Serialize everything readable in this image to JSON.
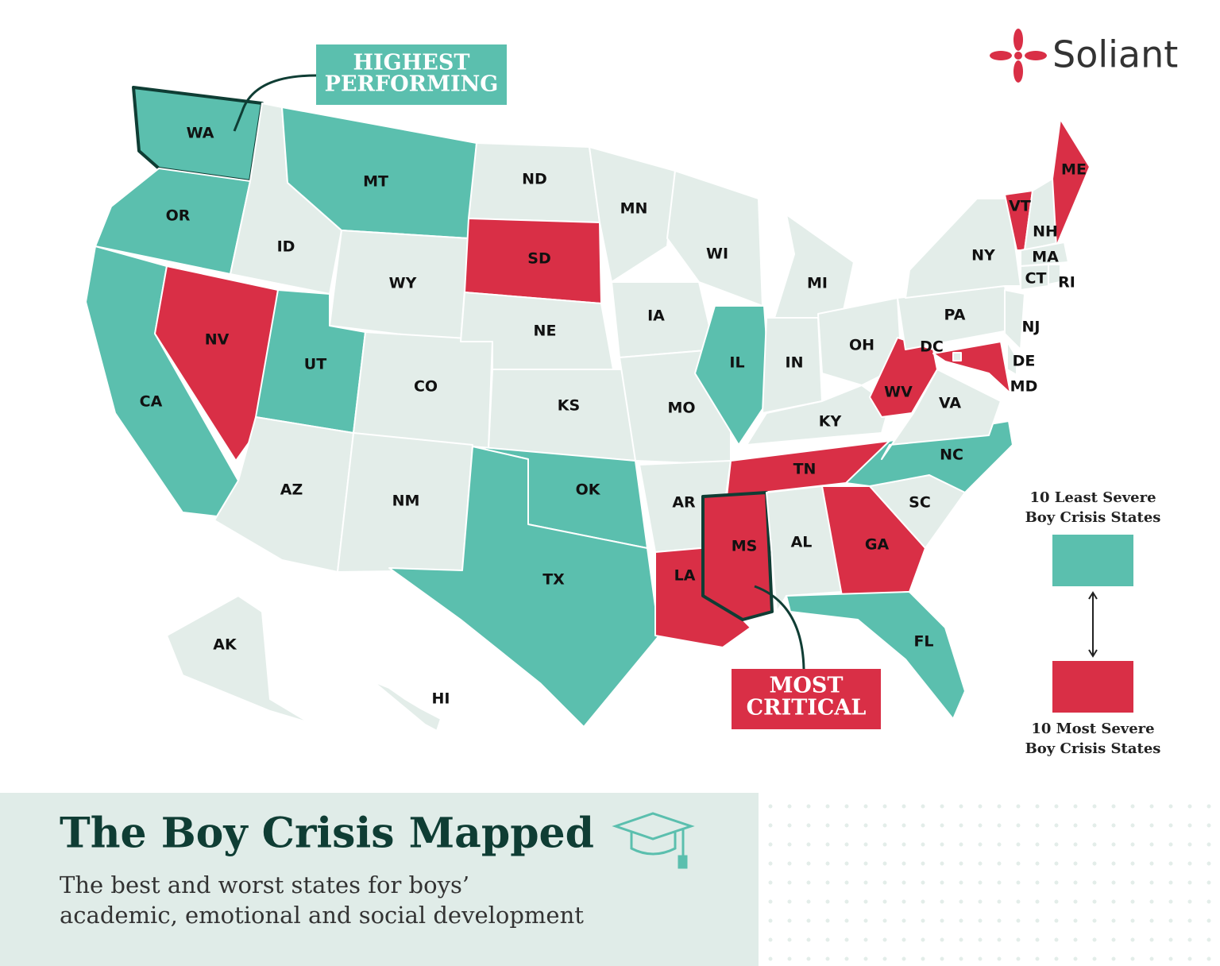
{
  "brand": "Soliant",
  "callouts": {
    "best": {
      "lines": [
        "HIGHEST",
        "PERFORMING"
      ]
    },
    "worst": {
      "lines": [
        "MOST",
        "CRITICAL"
      ]
    }
  },
  "legend": {
    "top": {
      "lines": [
        "10 Least Severe",
        "Boy Crisis States"
      ],
      "color": "#5bbfae"
    },
    "bottom": {
      "lines": [
        "10 Most Severe",
        "Boy Crisis States"
      ],
      "color": "#d92f46"
    }
  },
  "footer": {
    "title": "The Boy Crisis Mapped",
    "subtitle": [
      "The best and worst states for boys’",
      "academic, emotional and social development"
    ]
  },
  "states": [
    {
      "label": "WA",
      "color": "#5bbfae"
    },
    {
      "label": "OR",
      "color": "#5bbfae"
    },
    {
      "label": "CA",
      "color": "#5bbfae"
    },
    {
      "label": "NV",
      "color": "#d92f46"
    },
    {
      "label": "ID",
      "color": "#e3ede9"
    },
    {
      "label": "MT",
      "color": "#5bbfae"
    },
    {
      "label": "WY",
      "color": "#e3ede9"
    },
    {
      "label": "UT",
      "color": "#5bbfae"
    },
    {
      "label": "CO",
      "color": "#e3ede9"
    },
    {
      "label": "AZ",
      "color": "#e3ede9"
    },
    {
      "label": "NM",
      "color": "#e3ede9"
    },
    {
      "label": "ND",
      "color": "#e3ede9"
    },
    {
      "label": "SD",
      "color": "#d92f46"
    },
    {
      "label": "NE",
      "color": "#e3ede9"
    },
    {
      "label": "KS",
      "color": "#e3ede9"
    },
    {
      "label": "OK",
      "color": "#5bbfae"
    },
    {
      "label": "TX",
      "color": "#5bbfae"
    },
    {
      "label": "MN",
      "color": "#e3ede9"
    },
    {
      "label": "IA",
      "color": "#e3ede9"
    },
    {
      "label": "MO",
      "color": "#e3ede9"
    },
    {
      "label": "AR",
      "color": "#e3ede9"
    },
    {
      "label": "LA",
      "color": "#d92f46"
    },
    {
      "label": "WI",
      "color": "#e3ede9"
    },
    {
      "label": "IL",
      "color": "#5bbfae"
    },
    {
      "label": "MI",
      "color": "#e3ede9"
    },
    {
      "label": "IN",
      "color": "#e3ede9"
    },
    {
      "label": "OH",
      "color": "#e3ede9"
    },
    {
      "label": "KY",
      "color": "#e3ede9"
    },
    {
      "label": "TN",
      "color": "#d92f46"
    },
    {
      "label": "MS",
      "color": "#d92f46"
    },
    {
      "label": "AL",
      "color": "#e3ede9"
    },
    {
      "label": "GA",
      "color": "#d92f46"
    },
    {
      "label": "FL",
      "color": "#5bbfae"
    },
    {
      "label": "SC",
      "color": "#e3ede9"
    },
    {
      "label": "NC",
      "color": "#5bbfae"
    },
    {
      "label": "VA",
      "color": "#e3ede9"
    },
    {
      "label": "WV",
      "color": "#d92f46"
    },
    {
      "label": "PA",
      "color": "#e3ede9"
    },
    {
      "label": "NY",
      "color": "#e3ede9"
    },
    {
      "label": "NJ",
      "color": "#e3ede9"
    },
    {
      "label": "DE",
      "color": "#e3ede9"
    },
    {
      "label": "MD",
      "color": "#d92f46"
    },
    {
      "label": "DC",
      "color": "#e3ede9"
    },
    {
      "label": "VT",
      "color": "#d92f46"
    },
    {
      "label": "NH",
      "color": "#e3ede9"
    },
    {
      "label": "ME",
      "color": "#d92f46"
    },
    {
      "label": "MA",
      "color": "#e3ede9"
    },
    {
      "label": "CT",
      "color": "#e3ede9"
    },
    {
      "label": "RI",
      "color": "#e3ede9"
    },
    {
      "label": "AK",
      "color": "#e3ede9"
    },
    {
      "label": "HI",
      "color": "#e3ede9"
    }
  ]
}
